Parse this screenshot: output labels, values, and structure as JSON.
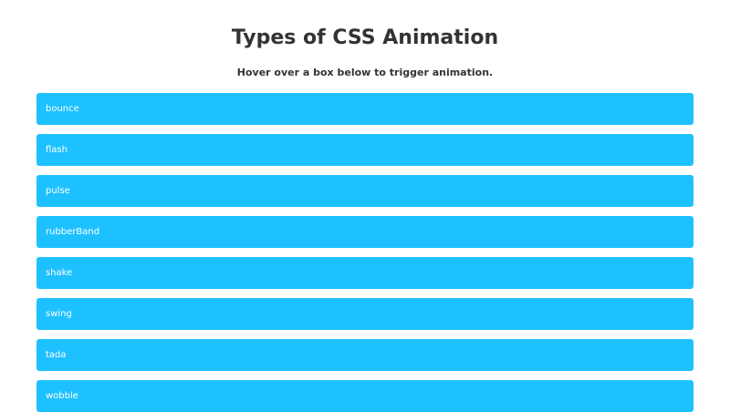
{
  "header": {
    "title": "Types of CSS Animation",
    "subtitle": "Hover over a box below to trigger animation."
  },
  "boxes": [
    {
      "label": "bounce"
    },
    {
      "label": "flash"
    },
    {
      "label": "pulse"
    },
    {
      "label": "rubberBand"
    },
    {
      "label": "shake"
    },
    {
      "label": "swing"
    },
    {
      "label": "tada"
    },
    {
      "label": "wobble"
    }
  ],
  "colors": {
    "box_background": "#1ec1ff",
    "box_text": "#ffffff",
    "heading_text": "#333333"
  }
}
